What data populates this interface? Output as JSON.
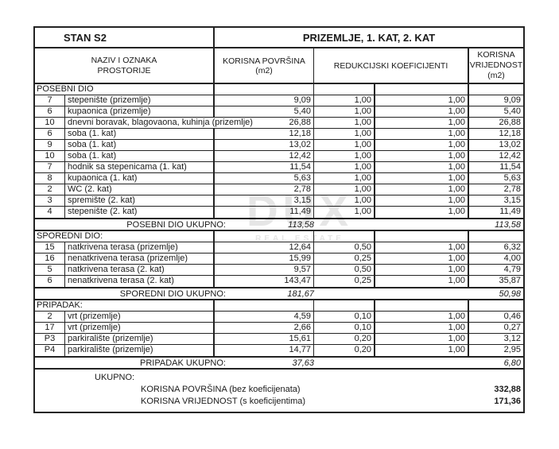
{
  "title": {
    "unit": "STAN S2",
    "floors": "PRIZEMLJE, 1. KAT, 2. KAT"
  },
  "header": {
    "name_col": [
      "NAZIV I OZNAKA",
      "PROSTORIJE"
    ],
    "area_col": "KORISNA POVRŠINA (m2)",
    "coef_col": "REDUKCIJSKI KOEFICIJENTI",
    "value_col": [
      "KORISNA",
      "VRIJEDNOST",
      "(m2)"
    ]
  },
  "sections": [
    {
      "label": "POSEBNI DIO",
      "rows": [
        {
          "num": "7",
          "name": "stepenište (prizemlje)",
          "area": "9,09",
          "coef1": "1,00",
          "coef2": "1,00",
          "value": "9,09"
        },
        {
          "num": "6",
          "name": "kupaonica (prizemlje)",
          "area": "5,40",
          "coef1": "1,00",
          "coef2": "1,00",
          "value": "5,40"
        },
        {
          "num": "10",
          "name": "dnevni boravak, blagovaona, kuhinja (prizemlje)",
          "area": "26,88",
          "coef1": "1,00",
          "coef2": "1,00",
          "value": "26,88",
          "overflow": true
        },
        {
          "num": "6",
          "name": "soba (1. kat)",
          "area": "12,18",
          "coef1": "1,00",
          "coef2": "1,00",
          "value": "12,18"
        },
        {
          "num": "9",
          "name": "soba (1. kat)",
          "area": "13,02",
          "coef1": "1,00",
          "coef2": "1,00",
          "value": "13,02"
        },
        {
          "num": "10",
          "name": "soba (1. kat)",
          "area": "12,42",
          "coef1": "1,00",
          "coef2": "1,00",
          "value": "12,42"
        },
        {
          "num": "7",
          "name": "hodnik sa stepenicama (1. kat)",
          "area": "11,54",
          "coef1": "1,00",
          "coef2": "1,00",
          "value": "11,54"
        },
        {
          "num": "8",
          "name": "kupaonica (1. kat)",
          "area": "5,63",
          "coef1": "1,00",
          "coef2": "1,00",
          "value": "5,63"
        },
        {
          "num": "2",
          "name": "WC (2. kat)",
          "area": "2,78",
          "coef1": "1,00",
          "coef2": "1,00",
          "value": "2,78"
        },
        {
          "num": "3",
          "name": "spremište (2. kat)",
          "area": "3,15",
          "coef1": "1,00",
          "coef2": "1,00",
          "value": "3,15"
        },
        {
          "num": "4",
          "name": "stepenište (2. kat)",
          "area": "11,49",
          "coef1": "1,00",
          "coef2": "1,00",
          "value": "11,49"
        }
      ],
      "total_label": "POSEBNI DIO UKUPNO:",
      "total_area": "113,58",
      "total_value": "113,58"
    },
    {
      "label": "SPOREDNI DIO:",
      "rows": [
        {
          "num": "15",
          "name": "natkrivena terasa (prizemlje)",
          "area": "12,64",
          "coef1": "0,50",
          "coef2": "1,00",
          "value": "6,32"
        },
        {
          "num": "16",
          "name": "nenatkrivena terasa (prizemlje)",
          "area": "15,99",
          "coef1": "0,25",
          "coef2": "1,00",
          "value": "4,00"
        },
        {
          "num": "5",
          "name": "natkrivena terasa (2. kat)",
          "area": "9,57",
          "coef1": "0,50",
          "coef2": "1,00",
          "value": "4,79"
        },
        {
          "num": "6",
          "name": "nenatkrivena terasa (2. kat)",
          "area": "143,47",
          "coef1": "0,25",
          "coef2": "1,00",
          "value": "35,87"
        }
      ],
      "total_label": "SPOREDNI DIO UKUPNO:",
      "total_area": "181,67",
      "total_value": "50,98"
    },
    {
      "label": "PRIPADAK:",
      "rows": [
        {
          "num": "2",
          "name": "vrt (prizemlje)",
          "area": "4,59",
          "coef1": "0,10",
          "coef2": "1,00",
          "value": "0,46"
        },
        {
          "num": "17",
          "name": "vrt (prizemlje)",
          "area": "2,66",
          "coef1": "0,10",
          "coef2": "1,00",
          "value": "0,27"
        },
        {
          "num": "P3",
          "name": "parkiralište (prizemlje)",
          "area": "15,61",
          "coef1": "0,20",
          "coef2": "1,00",
          "value": "3,12"
        },
        {
          "num": "P4",
          "name": "parkiralište (prizemlje)",
          "area": "14,77",
          "coef1": "0,20",
          "coef2": "1,00",
          "value": "2,95"
        }
      ],
      "total_label": "PRIPADAK UKUPNO:",
      "total_area": "37,63",
      "total_value": "6,80"
    }
  ],
  "grand_total": {
    "label": "UKUPNO:",
    "rows": [
      {
        "label": "KORISNA POVRŠINA (bez koeficijenata)",
        "value": "332,88"
      },
      {
        "label": "KORISNA VRIJEDNOST (s koeficijentima)",
        "value": "171,36"
      }
    ]
  },
  "watermark": {
    "brand": "DUX",
    "tagline": "REAL ESTATE"
  },
  "colors": {
    "border": "#232323",
    "text": "#1a1a1a",
    "watermark": "#e6e6e6"
  }
}
